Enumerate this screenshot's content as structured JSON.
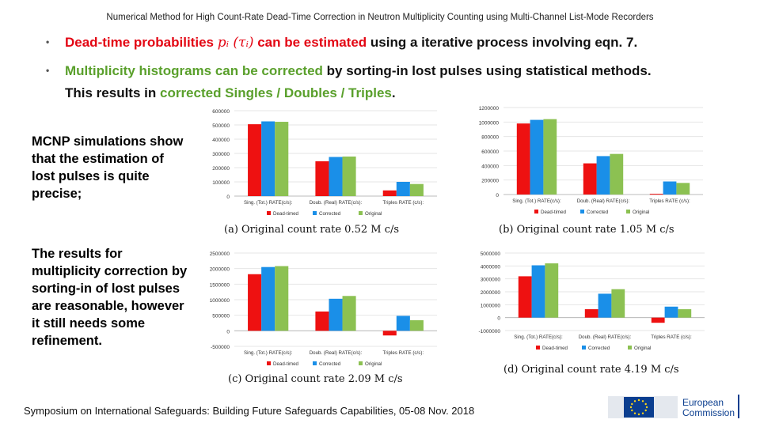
{
  "header": {
    "title": "Numerical Method for High Count-Rate Dead-Time Correction in Neutron Multiplicity Counting using Multi-Channel List-Mode Recorders"
  },
  "bullets": [
    {
      "symbol": "•",
      "part1": "Dead-time probabilities ",
      "math": "pᵢ (τᵢ)",
      "part2": " can be estimated",
      "part3": " using a iterative process involving eqn. 7."
    },
    {
      "symbol": "•",
      "part1": "Multiplicity histograms can be corrected",
      "part2": " by sorting-in lost pulses using statistical methods."
    }
  ],
  "line3": {
    "part1": "This results in ",
    "part2": "corrected Singles / Doubles / Triples",
    "part3": "."
  },
  "side_text": {
    "block1": "MCNP simulations show that the estimation of lost pulses is quite precise;",
    "block2": "The results for multiplicity correction by sorting-in of lost pulses are reasonable, however it still needs some refinement."
  },
  "footer": {
    "text": "Symposium on International Safeguards: Building Future Safeguards Capabilities,  05-08 Nov. 2018"
  },
  "logo": {
    "line1": "European",
    "line2": "Commission"
  },
  "colors": {
    "dead_timed": "#ee1111",
    "corrected": "#1a8fe8",
    "original": "#8cc152",
    "accent_red": "#e30613",
    "accent_green": "#5aa02c"
  },
  "chart_data": [
    {
      "type": "bar",
      "caption": "(a) Original count rate 0.52 M c/s",
      "categories": [
        "Sing. (Tot.) RATE(c/s):",
        "Doub. (Real) RATE(c/s):",
        "Triples RATE (c/s):"
      ],
      "series": [
        {
          "name": "Dead-timed",
          "values": [
            505000,
            245000,
            40000
          ]
        },
        {
          "name": "Corrected",
          "values": [
            525000,
            275000,
            100000
          ]
        },
        {
          "name": "Original",
          "values": [
            522000,
            278000,
            85000
          ]
        }
      ],
      "yticks": [
        0,
        100000,
        200000,
        300000,
        400000,
        500000,
        600000
      ],
      "ytick_labels": [
        "0",
        "100000",
        "200000",
        "300000",
        "400000",
        "500000",
        "600000"
      ],
      "ylim": [
        0,
        600000
      ]
    },
    {
      "type": "bar",
      "caption": "(b) Original count rate 1.05 M c/s",
      "categories": [
        "Sing. (Tot.) RATE(c/s):",
        "Doub. (Real) RATE(c/s):",
        "Triples RATE (c/s):"
      ],
      "series": [
        {
          "name": "Dead-timed",
          "values": [
            980000,
            430000,
            10000
          ]
        },
        {
          "name": "Corrected",
          "values": [
            1030000,
            530000,
            180000
          ]
        },
        {
          "name": "Original",
          "values": [
            1040000,
            560000,
            160000
          ]
        }
      ],
      "yticks": [
        0,
        200000,
        400000,
        600000,
        800000,
        1000000,
        1200000
      ],
      "ytick_labels": [
        "0",
        "200000",
        "400000",
        "600000",
        "800000",
        "1000000",
        "1200000"
      ],
      "ylim": [
        0,
        1200000
      ]
    },
    {
      "type": "bar",
      "caption": "(c) Original count rate 2.09 M c/s",
      "categories": [
        "Sing. (Tot.) RATE(c/s):",
        "Doub. (Real) RATE(c/s):",
        "Triples RATE (c/s):"
      ],
      "series": [
        {
          "name": "Dead-timed",
          "values": [
            1820000,
            620000,
            -150000
          ]
        },
        {
          "name": "Corrected",
          "values": [
            2050000,
            1030000,
            480000
          ]
        },
        {
          "name": "Original",
          "values": [
            2080000,
            1120000,
            340000
          ]
        }
      ],
      "yticks": [
        -500000,
        0,
        500000,
        1000000,
        1500000,
        2000000,
        2500000
      ],
      "ytick_labels": [
        "-500000",
        "0",
        "500000",
        "1000000",
        "1500000",
        "2000000",
        "2500000"
      ],
      "ylim": [
        -500000,
        2500000
      ]
    },
    {
      "type": "bar",
      "caption": "(d) Original count rate 4.19 M c/s",
      "categories": [
        "Sing. (Tot.) RATE(c/s):",
        "Doub. (Real) RATE(c/s):",
        "Triples RATE (c/s):"
      ],
      "series": [
        {
          "name": "Dead-timed",
          "values": [
            3200000,
            650000,
            -400000
          ]
        },
        {
          "name": "Corrected",
          "values": [
            4050000,
            1850000,
            850000
          ]
        },
        {
          "name": "Original",
          "values": [
            4200000,
            2200000,
            650000
          ]
        }
      ],
      "yticks": [
        -1000000,
        0,
        1000000,
        2000000,
        3000000,
        4000000,
        5000000
      ],
      "ytick_labels": [
        "-1000000",
        "0",
        "1000000",
        "2000000",
        "3000000",
        "4000000",
        "5000000"
      ],
      "ylim": [
        -1000000,
        5000000
      ]
    }
  ]
}
